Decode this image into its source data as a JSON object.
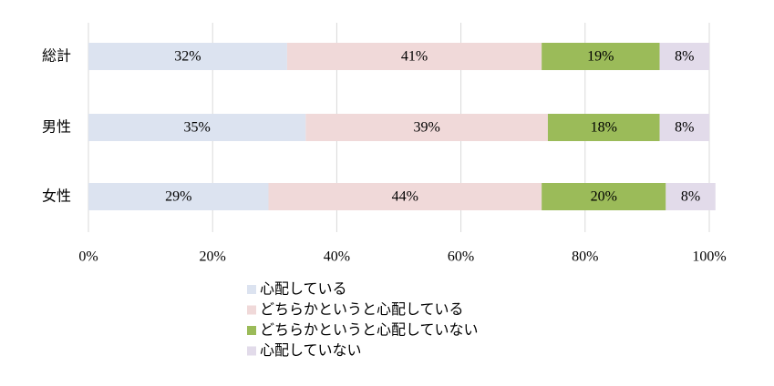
{
  "chart_data": {
    "type": "bar",
    "orientation": "horizontal",
    "stacked": true,
    "categories": [
      "総計",
      "男性",
      "女性"
    ],
    "series": [
      {
        "name": "心配している",
        "color": "#dce3f0",
        "values": [
          32,
          35,
          29
        ],
        "value_labels": [
          "32%",
          "35%",
          "29%"
        ]
      },
      {
        "name": "どちらかというと心配している",
        "color": "#f0d9d9",
        "values": [
          41,
          39,
          44
        ],
        "value_labels": [
          "41%",
          "39%",
          "44%"
        ]
      },
      {
        "name": "どちらかというと心配していない",
        "color": "#9bbb59",
        "values": [
          19,
          18,
          20
        ],
        "value_labels": [
          "19%",
          "18%",
          "20%"
        ]
      },
      {
        "name": "心配していない",
        "color": "#e2dbea",
        "values": [
          8,
          8,
          8
        ],
        "value_labels": [
          "8%",
          "8%",
          "8%"
        ]
      }
    ],
    "xlim": [
      0,
      100
    ],
    "xticks": [
      {
        "value": 0,
        "label": "0%"
      },
      {
        "value": 20,
        "label": "20%"
      },
      {
        "value": 40,
        "label": "40%"
      },
      {
        "value": 60,
        "label": "60%"
      },
      {
        "value": 80,
        "label": "80%"
      },
      {
        "value": 100,
        "label": "100%"
      }
    ],
    "grid": true,
    "legend": "bottom"
  }
}
